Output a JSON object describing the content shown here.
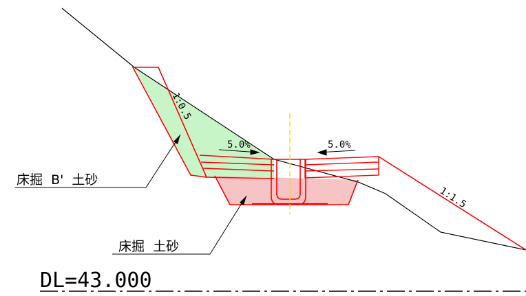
{
  "diagram": {
    "label_excavation_b": "床掘  B'  土砂",
    "label_excavation": "床掘  土砂",
    "slope_left": "1:0.5",
    "slope_right": "1:1.5",
    "grade_left": "5.0%",
    "grade_right": "5.0%",
    "datum_level": "DL=43.000",
    "colors": {
      "outline": "#ff0000",
      "ground": "#000000",
      "fill_b_zone": "#c8f5c8",
      "fill_excavation": "#f6c4c4",
      "centerline": "#ffd800"
    }
  }
}
